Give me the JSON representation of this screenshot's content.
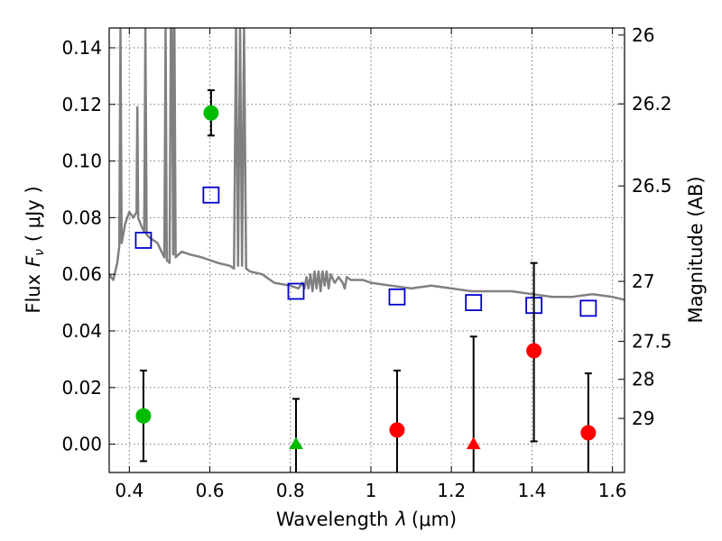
{
  "chart_data": {
    "type": "scatter",
    "xlabel": "Wavelength",
    "xlabel_symbol": "λ",
    "xlabel_unit": "(μm)",
    "ylabel": "Flux",
    "ylabel_symbol": "F",
    "ylabel_sub": "ν",
    "ylabel_unit": "( μJy )",
    "y2label": "Magnitude (AB)",
    "xlim": [
      0.35,
      1.63
    ],
    "ylim": [
      -0.01,
      0.147
    ],
    "x_ticks": [
      {
        "v": 0.4,
        "label": "0.4"
      },
      {
        "v": 0.6,
        "label": "0.6"
      },
      {
        "v": 0.8,
        "label": "0.8"
      },
      {
        "v": 1.0,
        "label": "1"
      },
      {
        "v": 1.2,
        "label": "1.2"
      },
      {
        "v": 1.4,
        "label": "1.4"
      },
      {
        "v": 1.6,
        "label": "1.6"
      }
    ],
    "y_ticks": [
      {
        "v": 0.0,
        "label": "0.00"
      },
      {
        "v": 0.02,
        "label": "0.02"
      },
      {
        "v": 0.04,
        "label": "0.04"
      },
      {
        "v": 0.06,
        "label": "0.06"
      },
      {
        "v": 0.08,
        "label": "0.08"
      },
      {
        "v": 0.1,
        "label": "0.10"
      },
      {
        "v": 0.12,
        "label": "0.12"
      },
      {
        "v": 0.14,
        "label": "0.14"
      }
    ],
    "y2_ticks": [
      {
        "flux": 0.1445,
        "label": "26"
      },
      {
        "flux": 0.1202,
        "label": "26.2"
      },
      {
        "flux": 0.0912,
        "label": "26.5"
      },
      {
        "flux": 0.0575,
        "label": "27"
      },
      {
        "flux": 0.0363,
        "label": "27.5"
      },
      {
        "flux": 0.0229,
        "label": "28"
      },
      {
        "flux": 0.0091,
        "label": "29"
      }
    ],
    "grid": true,
    "model_spectrum": {
      "color": "#808080",
      "points": [
        [
          0.35,
          0.06
        ],
        [
          0.36,
          0.058
        ],
        [
          0.37,
          0.064
        ],
        [
          0.375,
          0.07
        ],
        [
          0.378,
          0.147
        ],
        [
          0.381,
          0.071
        ],
        [
          0.39,
          0.078
        ],
        [
          0.4,
          0.082
        ],
        [
          0.41,
          0.08
        ],
        [
          0.418,
          0.082
        ],
        [
          0.42,
          0.119
        ],
        [
          0.422,
          0.08
        ],
        [
          0.43,
          0.077
        ],
        [
          0.437,
          0.075
        ],
        [
          0.44,
          0.147
        ],
        [
          0.443,
          0.074
        ],
        [
          0.45,
          0.073
        ],
        [
          0.47,
          0.071
        ],
        [
          0.48,
          0.068
        ],
        [
          0.487,
          0.066
        ],
        [
          0.49,
          0.147
        ],
        [
          0.493,
          0.065
        ],
        [
          0.5,
          0.064
        ],
        [
          0.503,
          0.147
        ],
        [
          0.506,
          0.147
        ],
        [
          0.509,
          0.067
        ],
        [
          0.512,
          0.147
        ],
        [
          0.515,
          0.066
        ],
        [
          0.53,
          0.068
        ],
        [
          0.55,
          0.067
        ],
        [
          0.58,
          0.066
        ],
        [
          0.6,
          0.065
        ],
        [
          0.62,
          0.064
        ],
        [
          0.65,
          0.063
        ],
        [
          0.66,
          0.062
        ],
        [
          0.665,
          0.147
        ],
        [
          0.67,
          0.063
        ],
        [
          0.675,
          0.147
        ],
        [
          0.68,
          0.063
        ],
        [
          0.685,
          0.147
        ],
        [
          0.69,
          0.062
        ],
        [
          0.7,
          0.061
        ],
        [
          0.73,
          0.06
        ],
        [
          0.76,
          0.057
        ],
        [
          0.8,
          0.056
        ],
        [
          0.82,
          0.055
        ],
        [
          0.83,
          0.057
        ],
        [
          0.835,
          0.055
        ],
        [
          0.84,
          0.059
        ],
        [
          0.845,
          0.055
        ],
        [
          0.85,
          0.06
        ],
        [
          0.855,
          0.054
        ],
        [
          0.86,
          0.061
        ],
        [
          0.865,
          0.055
        ],
        [
          0.87,
          0.061
        ],
        [
          0.875,
          0.054
        ],
        [
          0.88,
          0.061
        ],
        [
          0.885,
          0.056
        ],
        [
          0.89,
          0.061
        ],
        [
          0.895,
          0.055
        ],
        [
          0.9,
          0.06
        ],
        [
          0.91,
          0.057
        ],
        [
          0.92,
          0.059
        ],
        [
          0.93,
          0.057
        ],
        [
          0.935,
          0.055
        ],
        [
          0.94,
          0.059
        ],
        [
          0.95,
          0.058
        ],
        [
          0.96,
          0.058
        ],
        [
          0.98,
          0.058
        ],
        [
          1.0,
          0.057
        ],
        [
          1.05,
          0.056
        ],
        [
          1.1,
          0.055
        ],
        [
          1.15,
          0.056
        ],
        [
          1.2,
          0.055
        ],
        [
          1.25,
          0.054
        ],
        [
          1.3,
          0.054
        ],
        [
          1.35,
          0.054
        ],
        [
          1.4,
          0.053
        ],
        [
          1.45,
          0.052
        ],
        [
          1.5,
          0.052
        ],
        [
          1.55,
          0.053
        ],
        [
          1.6,
          0.052
        ],
        [
          1.63,
          0.051
        ]
      ]
    },
    "model_photometry": {
      "marker": "open-square",
      "color": "#0000cc",
      "points": [
        [
          0.435,
          0.072
        ],
        [
          0.603,
          0.088
        ],
        [
          0.814,
          0.054
        ],
        [
          1.065,
          0.052
        ],
        [
          1.255,
          0.05
        ],
        [
          1.405,
          0.049
        ],
        [
          1.54,
          0.048
        ]
      ]
    },
    "observed_detections": [
      {
        "x": 0.435,
        "y": 0.01,
        "err_low": 0.016,
        "err_high": 0.016,
        "color": "#00bb00"
      },
      {
        "x": 0.603,
        "y": 0.117,
        "err_low": 0.008,
        "err_high": 0.008,
        "color": "#00bb00"
      },
      {
        "x": 1.065,
        "y": 0.005,
        "err_low": 0.02,
        "err_high": 0.021,
        "color": "#ff0000"
      },
      {
        "x": 1.405,
        "y": 0.033,
        "err_low": 0.032,
        "err_high": 0.031,
        "color": "#ff0000"
      },
      {
        "x": 1.54,
        "y": 0.004,
        "err_low": 0.02,
        "err_high": 0.021,
        "color": "#ff0000"
      }
    ],
    "observed_upper_limits": [
      {
        "x": 0.814,
        "y": 0.0,
        "err_high": 0.016,
        "color": "#00bb00"
      },
      {
        "x": 1.255,
        "y": 0.0,
        "err_high": 0.038,
        "color": "#ff0000"
      }
    ]
  }
}
